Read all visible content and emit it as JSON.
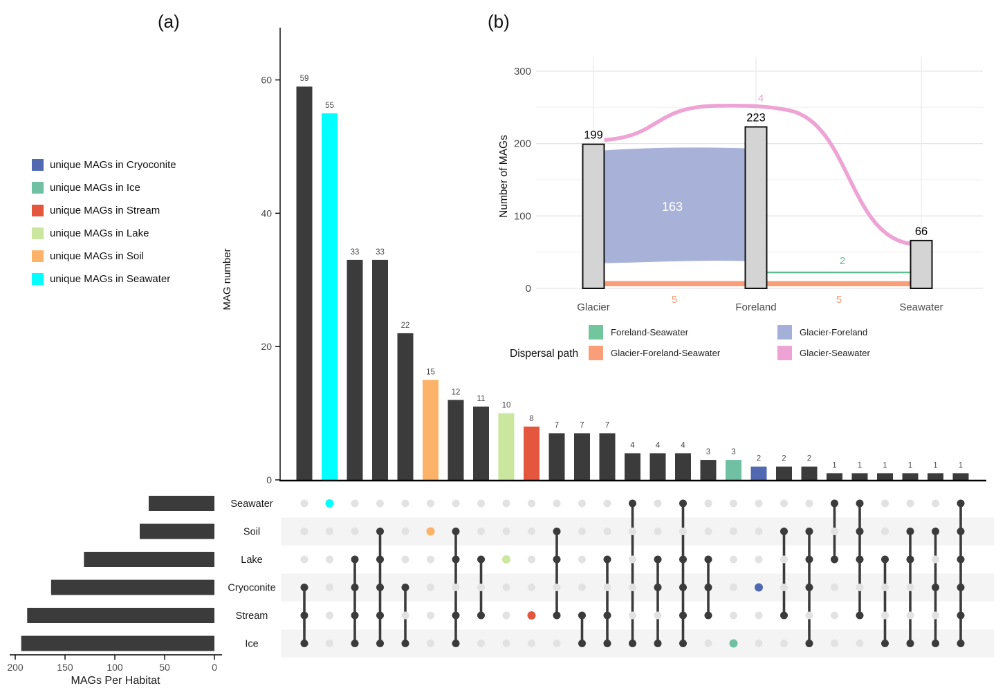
{
  "panel_a_label": "(a)",
  "panel_b_label": "(b)",
  "unique_legend": {
    "items": [
      {
        "label": "unique MAGs in Cryoconite",
        "color": "#5069b1"
      },
      {
        "label": "unique MAGs in Ice",
        "color": "#70c1a4"
      },
      {
        "label": "unique MAGs in Stream",
        "color": "#e4563e"
      },
      {
        "label": "unique MAGs in Lake",
        "color": "#cbe69f"
      },
      {
        "label": "unique MAGs in Soil",
        "color": "#fcb268"
      },
      {
        "label": "unique MAGs in Seawater",
        "color": "#00ffff"
      }
    ]
  },
  "chart_data": [
    {
      "id": "upset-intersections",
      "type": "bar",
      "ylabel": "MAG number",
      "yticks": [
        0,
        20,
        40,
        60
      ],
      "ylim": [
        0,
        68
      ],
      "grid": false,
      "bar_default_color": "#3b3b3b",
      "dot_inactive_color": "#e2e2e2",
      "stripe_color": "#f4f4f4",
      "sets_order": [
        "Seawater",
        "Soil",
        "Lake",
        "Cryoconite",
        "Stream",
        "Ice"
      ],
      "set_colors": {
        "Seawater": "#00ffff",
        "Soil": "#fcb268",
        "Lake": "#cbe69f",
        "Cryoconite": "#5069b1",
        "Stream": "#e4563e",
        "Ice": "#70c1a4"
      },
      "intersections": [
        {
          "value": 59,
          "members": [
            "Cryoconite",
            "Stream",
            "Ice"
          ]
        },
        {
          "value": 55,
          "members": [
            "Seawater"
          ],
          "color": "#00ffff"
        },
        {
          "value": 33,
          "members": [
            "Lake",
            "Cryoconite",
            "Stream",
            "Ice"
          ]
        },
        {
          "value": 33,
          "members": [
            "Soil",
            "Lake",
            "Cryoconite",
            "Stream",
            "Ice"
          ]
        },
        {
          "value": 22,
          "members": [
            "Cryoconite",
            "Ice"
          ]
        },
        {
          "value": 15,
          "members": [
            "Soil"
          ],
          "color": "#fcb268"
        },
        {
          "value": 12,
          "members": [
            "Soil",
            "Lake",
            "Stream",
            "Ice"
          ]
        },
        {
          "value": 11,
          "members": [
            "Lake",
            "Stream"
          ]
        },
        {
          "value": 10,
          "members": [
            "Lake"
          ],
          "color": "#cbe69f"
        },
        {
          "value": 8,
          "members": [
            "Stream"
          ],
          "color": "#e4563e"
        },
        {
          "value": 7,
          "members": [
            "Soil",
            "Lake",
            "Stream"
          ]
        },
        {
          "value": 7,
          "members": [
            "Stream",
            "Ice"
          ]
        },
        {
          "value": 7,
          "members": [
            "Lake",
            "Stream",
            "Ice"
          ]
        },
        {
          "value": 4,
          "members": [
            "Seawater",
            "Ice"
          ]
        },
        {
          "value": 4,
          "members": [
            "Lake",
            "Cryoconite",
            "Ice"
          ]
        },
        {
          "value": 4,
          "members": [
            "Seawater",
            "Lake",
            "Cryoconite",
            "Stream",
            "Ice"
          ]
        },
        {
          "value": 3,
          "members": [
            "Lake",
            "Cryoconite",
            "Stream"
          ]
        },
        {
          "value": 3,
          "members": [
            "Ice"
          ],
          "color": "#70c1a4"
        },
        {
          "value": 2,
          "members": [
            "Cryoconite"
          ],
          "color": "#5069b1"
        },
        {
          "value": 2,
          "members": [
            "Soil",
            "Stream"
          ]
        },
        {
          "value": 2,
          "members": [
            "Soil",
            "Lake",
            "Cryoconite",
            "Ice"
          ]
        },
        {
          "value": 1,
          "members": [
            "Seawater",
            "Lake"
          ]
        },
        {
          "value": 1,
          "members": [
            "Seawater",
            "Soil",
            "Lake",
            "Stream"
          ]
        },
        {
          "value": 1,
          "members": [
            "Lake",
            "Ice"
          ]
        },
        {
          "value": 1,
          "members": [
            "Soil",
            "Lake",
            "Ice"
          ]
        },
        {
          "value": 1,
          "members": [
            "Soil",
            "Cryoconite",
            "Ice"
          ]
        },
        {
          "value": 1,
          "members": [
            "Seawater",
            "Soil",
            "Lake",
            "Cryoconite",
            "Stream",
            "Ice"
          ]
        }
      ]
    },
    {
      "id": "habitat-totals",
      "type": "bar",
      "xlabel": "MAGs Per Habitat",
      "xticks": [
        200,
        150,
        100,
        50,
        0
      ],
      "xlim": [
        200,
        0
      ],
      "bar_color": "#3b3b3b",
      "categories": [
        "Seawater",
        "Soil",
        "Lake",
        "Cryoconite",
        "Stream",
        "Ice"
      ],
      "values": [
        66,
        75,
        131,
        164,
        188,
        194
      ]
    },
    {
      "id": "dispersal-alluvial",
      "type": "area",
      "ylabel": "Number of MAGs",
      "yticks": [
        0,
        100,
        200,
        300
      ],
      "yminor": [
        50,
        150,
        250
      ],
      "ylim": [
        0,
        320
      ],
      "grid": true,
      "bar_fill": "#d4d4d4",
      "bar_stroke": "#111111",
      "stages": [
        {
          "label": "Glacier",
          "total": 199
        },
        {
          "label": "Foreland",
          "total": 223
        },
        {
          "label": "Seawater",
          "total": 66
        }
      ],
      "flows": {
        "glacier_foreland": {
          "value": 163,
          "color": "#a5b0d8",
          "label_color": "#ffffff"
        },
        "glacier_seawater": {
          "value": 4,
          "color": "#eea3d5"
        },
        "foreland_seawater": {
          "value": 2,
          "color": "#5fbd92"
        },
        "glacier_foreland_seawater": {
          "value_left": 5,
          "value_right": 5,
          "color": "#f99e78"
        }
      },
      "legend": {
        "title": "Dispersal path",
        "items": [
          {
            "label": "Foreland-Seawater",
            "color": "#72c69e"
          },
          {
            "label": "Glacier-Foreland-Seawater",
            "color": "#f99e78"
          },
          {
            "label": "Glacier-Foreland",
            "color": "#a5b0d8"
          },
          {
            "label": "Glacier-Seawater",
            "color": "#eea3d5"
          }
        ]
      }
    }
  ]
}
